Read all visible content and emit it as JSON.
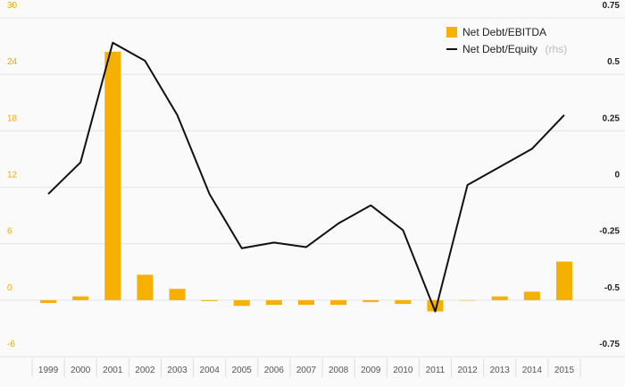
{
  "chart_data": {
    "type": "bar+line",
    "categories": [
      "1999",
      "2000",
      "2001",
      "2002",
      "2003",
      "2004",
      "2005",
      "2006",
      "2007",
      "2008",
      "2009",
      "2010",
      "2011",
      "2012",
      "2013",
      "2014",
      "2015"
    ],
    "series": [
      {
        "name": "Net Debt/EBITDA",
        "type": "bar",
        "axis": "left",
        "color": "#f5b000",
        "values": [
          -0.3,
          0.4,
          26.4,
          2.7,
          1.2,
          -0.1,
          -0.6,
          -0.5,
          -0.5,
          -0.5,
          -0.2,
          -0.4,
          -1.2,
          0.0,
          0.4,
          0.9,
          4.1
        ]
      },
      {
        "name": "Net Debt/Equity",
        "type": "line",
        "axis": "right",
        "color": "#111111",
        "values": [
          -0.03,
          0.11,
          0.64,
          0.56,
          0.32,
          -0.03,
          -0.27,
          -0.245,
          -0.265,
          -0.16,
          -0.08,
          -0.19,
          -0.55,
          0.01,
          0.09,
          0.17,
          0.32
        ]
      }
    ],
    "legend": {
      "bar_label": "Net Debt/EBITDA",
      "line_label": "Net Debt/Equity",
      "line_suffix": "(rhs)",
      "position": "top-right"
    },
    "y_left": {
      "ylim": [
        -6,
        30
      ],
      "ticks": [
        "-6",
        "0",
        "6",
        "12",
        "18",
        "24",
        "30"
      ],
      "color": "#f5a800"
    },
    "y_right": {
      "ylim": [
        -0.75,
        0.75
      ],
      "ticks": [
        "-0.75",
        "-0.5",
        "-0.25",
        "0",
        "0.25",
        "0.5",
        "0.75"
      ],
      "color": "#222222"
    },
    "grid": true
  }
}
